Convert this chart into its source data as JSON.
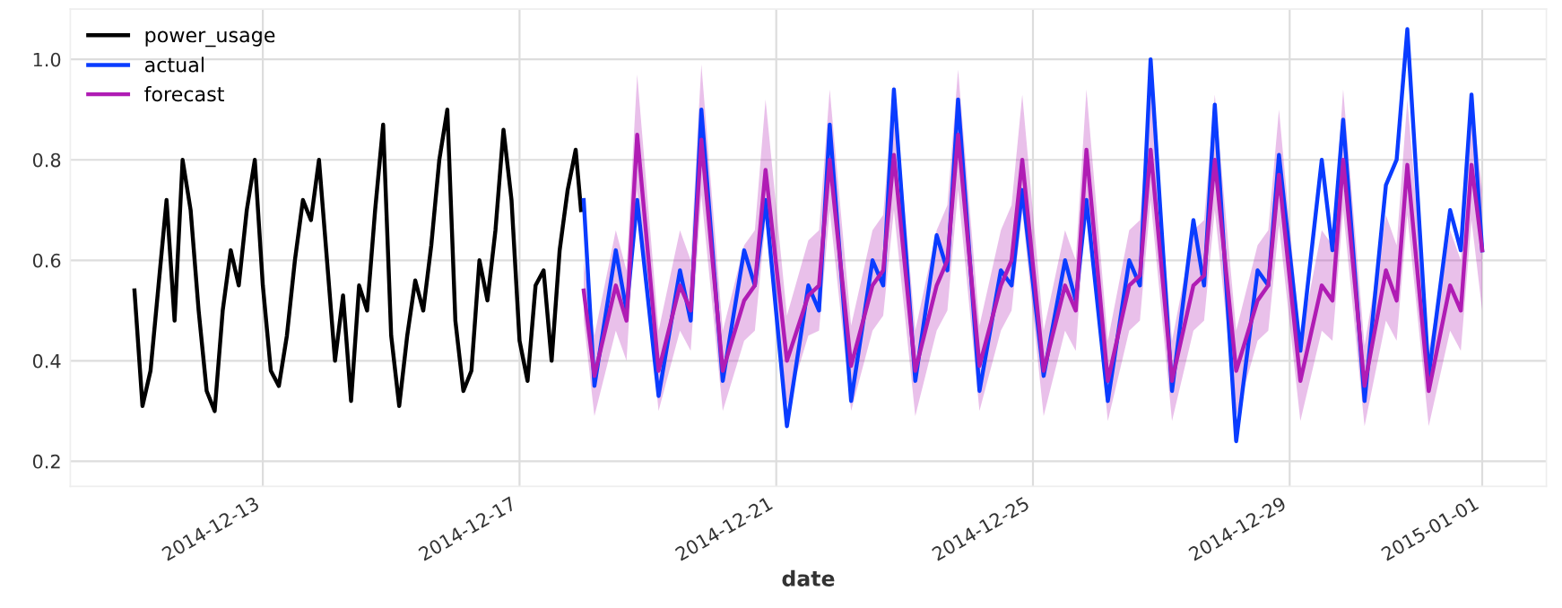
{
  "chart_data": {
    "type": "line",
    "xlabel": "date",
    "legend": "top left",
    "grid": true,
    "line_style": "solid",
    "marker": "none",
    "xlim": [
      "2014-12-10",
      "2015-01-02"
    ],
    "xticks": [
      {
        "value": "2014-12-13",
        "label": "2014-12-13"
      },
      {
        "value": "2014-12-17",
        "label": "2014-12-17"
      },
      {
        "value": "2014-12-21",
        "label": "2014-12-21"
      },
      {
        "value": "2014-12-25",
        "label": "2014-12-25"
      },
      {
        "value": "2014-12-29",
        "label": "2014-12-29"
      },
      {
        "value": "2015-01-01",
        "label": "2015-01-01"
      }
    ],
    "ylim": [
      0.15,
      1.1
    ],
    "yticks": [
      0.2,
      0.4,
      0.6,
      0.8,
      {
        "value": 1.0,
        "label": "1.0"
      }
    ],
    "series": [
      {
        "name": "power_usage",
        "color": "#000000",
        "x": [
          "2014-12-11T00:00",
          "2014-12-11T03:00",
          "2014-12-11T06:00",
          "2014-12-11T09:00",
          "2014-12-11T12:00",
          "2014-12-11T15:00",
          "2014-12-11T18:00",
          "2014-12-11T21:00",
          "2014-12-12T00:00",
          "2014-12-12T03:00",
          "2014-12-12T06:00",
          "2014-12-12T09:00",
          "2014-12-12T12:00",
          "2014-12-12T15:00",
          "2014-12-12T18:00",
          "2014-12-12T21:00",
          "2014-12-13T00:00",
          "2014-12-13T03:00",
          "2014-12-13T06:00",
          "2014-12-13T09:00",
          "2014-12-13T12:00",
          "2014-12-13T15:00",
          "2014-12-13T18:00",
          "2014-12-13T21:00",
          "2014-12-14T00:00",
          "2014-12-14T03:00",
          "2014-12-14T06:00",
          "2014-12-14T09:00",
          "2014-12-14T12:00",
          "2014-12-14T15:00",
          "2014-12-14T18:00",
          "2014-12-14T21:00",
          "2014-12-15T00:00",
          "2014-12-15T03:00",
          "2014-12-15T06:00",
          "2014-12-15T09:00",
          "2014-12-15T12:00",
          "2014-12-15T15:00",
          "2014-12-15T18:00",
          "2014-12-15T21:00",
          "2014-12-16T00:00",
          "2014-12-16T03:00",
          "2014-12-16T06:00",
          "2014-12-16T09:00",
          "2014-12-16T12:00",
          "2014-12-16T15:00",
          "2014-12-16T18:00",
          "2014-12-16T21:00",
          "2014-12-17T00:00",
          "2014-12-17T03:00",
          "2014-12-17T06:00",
          "2014-12-17T09:00",
          "2014-12-17T12:00",
          "2014-12-17T15:00",
          "2014-12-17T18:00",
          "2014-12-17T21:00",
          "2014-12-17T23:00"
        ],
        "values": [
          0.54,
          0.31,
          0.38,
          0.55,
          0.72,
          0.48,
          0.8,
          0.7,
          0.5,
          0.34,
          0.3,
          0.5,
          0.62,
          0.55,
          0.7,
          0.8,
          0.55,
          0.38,
          0.35,
          0.45,
          0.6,
          0.72,
          0.68,
          0.8,
          0.6,
          0.4,
          0.53,
          0.32,
          0.55,
          0.5,
          0.7,
          0.87,
          0.45,
          0.31,
          0.45,
          0.56,
          0.5,
          0.63,
          0.8,
          0.9,
          0.48,
          0.34,
          0.38,
          0.6,
          0.52,
          0.66,
          0.86,
          0.72,
          0.44,
          0.36,
          0.55,
          0.58,
          0.4,
          0.62,
          0.74,
          0.82,
          0.7
        ]
      },
      {
        "name": "actual",
        "color": "#0a3cff",
        "x": [
          "2014-12-18T00:00",
          "2014-12-18T04:00",
          "2014-12-18T12:00",
          "2014-12-18T16:00",
          "2014-12-18T20:00",
          "2014-12-19T04:00",
          "2014-12-19T12:00",
          "2014-12-19T16:00",
          "2014-12-19T20:00",
          "2014-12-20T04:00",
          "2014-12-20T12:00",
          "2014-12-20T16:00",
          "2014-12-20T20:00",
          "2014-12-21T04:00",
          "2014-12-21T12:00",
          "2014-12-21T16:00",
          "2014-12-21T20:00",
          "2014-12-22T04:00",
          "2014-12-22T12:00",
          "2014-12-22T16:00",
          "2014-12-22T20:00",
          "2014-12-23T04:00",
          "2014-12-23T12:00",
          "2014-12-23T16:00",
          "2014-12-23T20:00",
          "2014-12-24T04:00",
          "2014-12-24T12:00",
          "2014-12-24T16:00",
          "2014-12-24T20:00",
          "2014-12-25T04:00",
          "2014-12-25T12:00",
          "2014-12-25T16:00",
          "2014-12-25T20:00",
          "2014-12-26T04:00",
          "2014-12-26T12:00",
          "2014-12-26T16:00",
          "2014-12-26T20:00",
          "2014-12-27T04:00",
          "2014-12-27T12:00",
          "2014-12-27T16:00",
          "2014-12-27T20:00",
          "2014-12-28T04:00",
          "2014-12-28T12:00",
          "2014-12-28T16:00",
          "2014-12-28T20:00",
          "2014-12-29T04:00",
          "2014-12-29T12:00",
          "2014-12-29T16:00",
          "2014-12-29T20:00",
          "2014-12-30T04:00",
          "2014-12-30T12:00",
          "2014-12-30T16:00",
          "2014-12-30T20:00",
          "2014-12-31T04:00",
          "2014-12-31T12:00",
          "2014-12-31T16:00",
          "2014-12-31T20:00",
          "2015-01-01T00:00"
        ],
        "values": [
          0.72,
          0.35,
          0.62,
          0.5,
          0.72,
          0.33,
          0.58,
          0.48,
          0.9,
          0.36,
          0.62,
          0.55,
          0.72,
          0.27,
          0.55,
          0.5,
          0.87,
          0.32,
          0.6,
          0.55,
          0.94,
          0.36,
          0.65,
          0.58,
          0.92,
          0.34,
          0.58,
          0.55,
          0.74,
          0.37,
          0.6,
          0.52,
          0.72,
          0.32,
          0.6,
          0.55,
          1.0,
          0.34,
          0.68,
          0.55,
          0.91,
          0.24,
          0.58,
          0.55,
          0.81,
          0.42,
          0.8,
          0.62,
          0.88,
          0.32,
          0.75,
          0.8,
          1.06,
          0.37,
          0.7,
          0.62,
          0.93,
          0.62
        ]
      },
      {
        "name": "forecast",
        "color": "#b01cb4",
        "x": [
          "2014-12-18T00:00",
          "2014-12-18T04:00",
          "2014-12-18T12:00",
          "2014-12-18T16:00",
          "2014-12-18T20:00",
          "2014-12-19T04:00",
          "2014-12-19T12:00",
          "2014-12-19T16:00",
          "2014-12-19T20:00",
          "2014-12-20T04:00",
          "2014-12-20T12:00",
          "2014-12-20T16:00",
          "2014-12-20T20:00",
          "2014-12-21T04:00",
          "2014-12-21T12:00",
          "2014-12-21T16:00",
          "2014-12-21T20:00",
          "2014-12-22T04:00",
          "2014-12-22T12:00",
          "2014-12-22T16:00",
          "2014-12-22T20:00",
          "2014-12-23T04:00",
          "2014-12-23T12:00",
          "2014-12-23T16:00",
          "2014-12-23T20:00",
          "2014-12-24T04:00",
          "2014-12-24T12:00",
          "2014-12-24T16:00",
          "2014-12-24T20:00",
          "2014-12-25T04:00",
          "2014-12-25T12:00",
          "2014-12-25T16:00",
          "2014-12-25T20:00",
          "2014-12-26T04:00",
          "2014-12-26T12:00",
          "2014-12-26T16:00",
          "2014-12-26T20:00",
          "2014-12-27T04:00",
          "2014-12-27T12:00",
          "2014-12-27T16:00",
          "2014-12-27T20:00",
          "2014-12-28T04:00",
          "2014-12-28T12:00",
          "2014-12-28T16:00",
          "2014-12-28T20:00",
          "2014-12-29T04:00",
          "2014-12-29T12:00",
          "2014-12-29T16:00",
          "2014-12-29T20:00",
          "2014-12-30T04:00",
          "2014-12-30T12:00",
          "2014-12-30T16:00",
          "2014-12-30T20:00",
          "2014-12-31T04:00",
          "2014-12-31T12:00",
          "2014-12-31T16:00",
          "2014-12-31T20:00",
          "2015-01-01T00:00"
        ],
        "values": [
          0.54,
          0.37,
          0.55,
          0.48,
          0.85,
          0.38,
          0.55,
          0.5,
          0.84,
          0.38,
          0.52,
          0.55,
          0.78,
          0.4,
          0.53,
          0.55,
          0.8,
          0.39,
          0.55,
          0.58,
          0.81,
          0.38,
          0.55,
          0.6,
          0.85,
          0.39,
          0.55,
          0.6,
          0.8,
          0.38,
          0.55,
          0.5,
          0.82,
          0.36,
          0.55,
          0.57,
          0.82,
          0.36,
          0.55,
          0.57,
          0.8,
          0.38,
          0.52,
          0.55,
          0.77,
          0.36,
          0.55,
          0.52,
          0.8,
          0.35,
          0.58,
          0.52,
          0.79,
          0.34,
          0.55,
          0.5,
          0.79,
          0.62
        ],
        "lower": [
          0.48,
          0.29,
          0.46,
          0.4,
          0.74,
          0.3,
          0.46,
          0.42,
          0.73,
          0.3,
          0.44,
          0.46,
          0.68,
          0.31,
          0.45,
          0.46,
          0.7,
          0.3,
          0.46,
          0.49,
          0.7,
          0.29,
          0.46,
          0.5,
          0.74,
          0.3,
          0.46,
          0.5,
          0.7,
          0.29,
          0.46,
          0.42,
          0.72,
          0.28,
          0.46,
          0.48,
          0.72,
          0.28,
          0.46,
          0.48,
          0.7,
          0.29,
          0.44,
          0.46,
          0.67,
          0.28,
          0.46,
          0.44,
          0.7,
          0.27,
          0.48,
          0.44,
          0.69,
          0.27,
          0.46,
          0.42,
          0.68,
          0.5
        ],
        "upper": [
          0.6,
          0.45,
          0.66,
          0.58,
          0.97,
          0.46,
          0.66,
          0.6,
          0.99,
          0.46,
          0.63,
          0.66,
          0.92,
          0.49,
          0.64,
          0.66,
          0.94,
          0.47,
          0.66,
          0.69,
          0.95,
          0.46,
          0.66,
          0.71,
          0.98,
          0.47,
          0.66,
          0.71,
          0.93,
          0.46,
          0.66,
          0.6,
          0.94,
          0.44,
          0.66,
          0.68,
          0.95,
          0.44,
          0.66,
          0.68,
          0.93,
          0.46,
          0.63,
          0.66,
          0.9,
          0.44,
          0.66,
          0.63,
          0.94,
          0.43,
          0.69,
          0.63,
          0.92,
          0.42,
          0.66,
          0.6,
          0.93,
          0.74
        ]
      }
    ]
  }
}
